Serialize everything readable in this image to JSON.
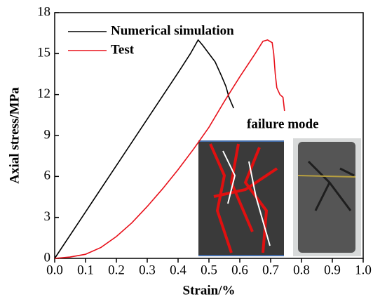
{
  "chart_data": {
    "type": "line",
    "xlabel": "Strain/%",
    "ylabel": "Axial stress/MPa",
    "annotation": "failure mode",
    "xlim": [
      0,
      1
    ],
    "ylim": [
      0,
      18
    ],
    "xticks": [
      {
        "value": 0,
        "label": "0.0"
      },
      0.1,
      0.2,
      0.3,
      0.4,
      0.5,
      0.6,
      0.7,
      0.8,
      0.9,
      {
        "value": 1,
        "label": "1.0"
      }
    ],
    "yticks": [
      0,
      3,
      6,
      9,
      12,
      15,
      18
    ],
    "legend": "upper left",
    "series": [
      {
        "name": "Numerical simulation",
        "color": "#000000",
        "x": [
          0,
          0.1,
          0.2,
          0.3,
          0.4,
          0.44,
          0.465,
          0.48,
          0.5,
          0.52,
          0.54,
          0.555,
          0.565,
          0.58
        ],
        "values": [
          0,
          3.4,
          6.8,
          10.2,
          13.6,
          15.0,
          16.0,
          15.6,
          15.0,
          14.4,
          13.4,
          12.6,
          11.8,
          11.0
        ]
      },
      {
        "name": "Test",
        "color": "#e8101a",
        "x": [
          0,
          0.05,
          0.1,
          0.15,
          0.2,
          0.25,
          0.3,
          0.35,
          0.4,
          0.45,
          0.5,
          0.55,
          0.6,
          0.65,
          0.675,
          0.69,
          0.705,
          0.71,
          0.715,
          0.72,
          0.73,
          0.74,
          0.745
        ],
        "values": [
          0,
          0.1,
          0.3,
          0.8,
          1.6,
          2.6,
          3.8,
          5.1,
          6.5,
          8.0,
          9.6,
          11.5,
          13.3,
          15.0,
          15.9,
          16.0,
          15.8,
          15.0,
          13.5,
          12.5,
          12.0,
          11.8,
          10.8
        ]
      }
    ]
  }
}
